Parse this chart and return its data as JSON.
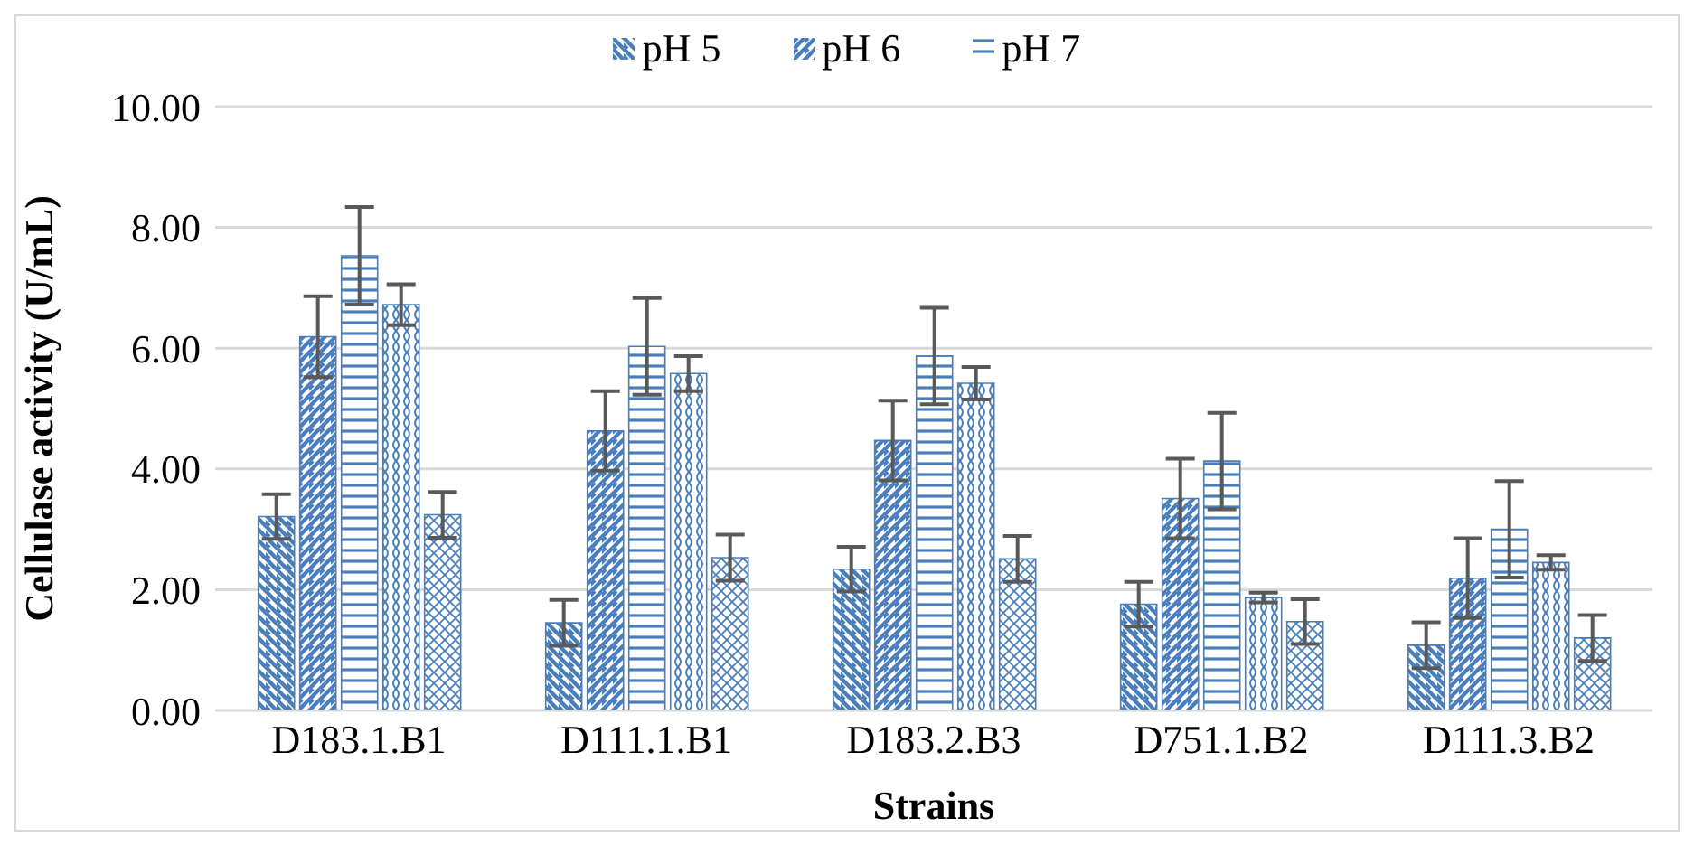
{
  "chart_data": {
    "type": "bar",
    "xlabel": "Strains",
    "ylabel": "Cellulase activity (U/mL)",
    "categories": [
      "D183.1.B1",
      "D111.1.B1",
      "D183.2.B3",
      "D751.1.B2",
      "D111.3.B2"
    ],
    "series": [
      {
        "name": "pH 5",
        "color": "#4a7ebb",
        "values": [
          3.21,
          1.45,
          2.34,
          1.76,
          1.08
        ],
        "errors": [
          0.37,
          0.38,
          0.37,
          0.37,
          0.38
        ]
      },
      {
        "name": "pH 6",
        "color": "#4a7ebb",
        "values": [
          6.19,
          4.63,
          4.47,
          3.51,
          2.19
        ],
        "errors": [
          0.67,
          0.66,
          0.66,
          0.66,
          0.66
        ]
      },
      {
        "name": "pH 7",
        "color": "#4a7ebb",
        "values": [
          7.53,
          6.03,
          5.87,
          4.13,
          3.0
        ],
        "errors": [
          0.81,
          0.8,
          0.8,
          0.8,
          0.8
        ]
      },
      {
        "color": "#4a7ebb",
        "values": [
          6.72,
          5.58,
          5.42,
          1.87,
          2.45
        ],
        "errors": [
          0.34,
          0.29,
          0.27,
          0.08,
          0.12
        ]
      },
      {
        "color": "#4a7ebb",
        "values": [
          3.24,
          2.53,
          2.51,
          1.47,
          1.2
        ],
        "errors": [
          0.38,
          0.38,
          0.38,
          0.37,
          0.38
        ]
      }
    ],
    "ylim": [
      0,
      10
    ],
    "yticks": [
      {
        "value": 0,
        "label": "0.00"
      },
      {
        "value": 2,
        "label": "2.00"
      },
      {
        "value": 4,
        "label": "4.00"
      },
      {
        "value": 6,
        "label": "6.00"
      },
      {
        "value": 8,
        "label": "8.00"
      },
      {
        "value": 10,
        "label": "10.00"
      }
    ],
    "grid": "y",
    "legend": "top"
  }
}
